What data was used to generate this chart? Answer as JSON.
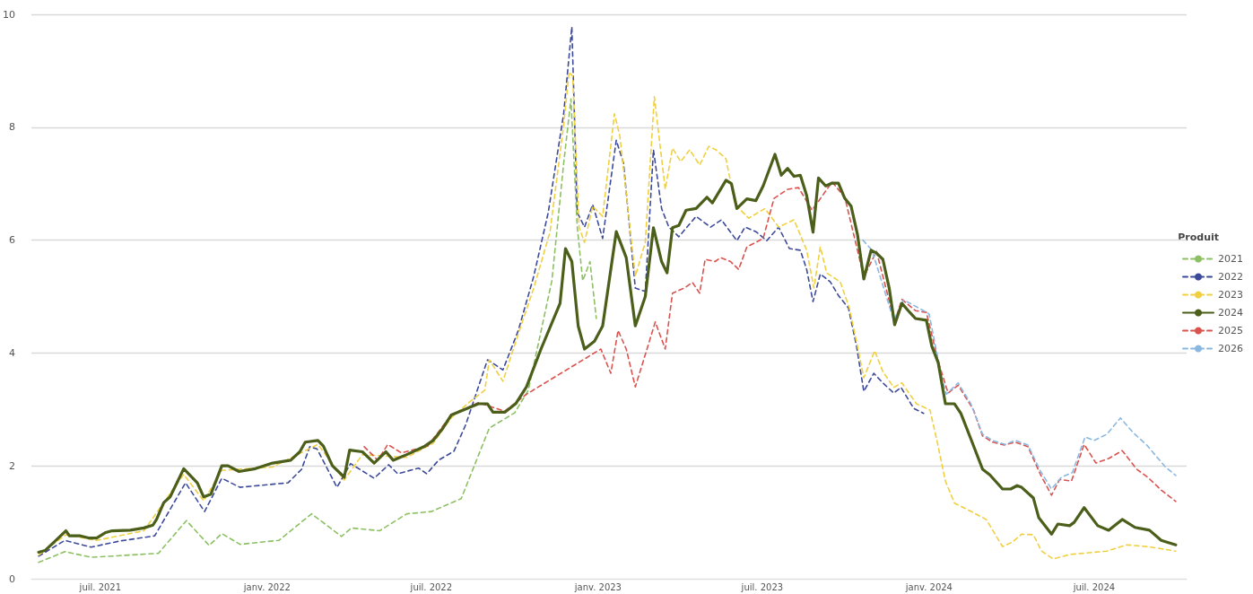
{
  "chart_data": {
    "type": "line",
    "legend_title": "Produit",
    "legend": "right",
    "grid": "y",
    "marker": "none",
    "xlim": [
      "2021-04-16",
      "2024-10-11"
    ],
    "xticks": [
      {
        "value": "2021-07-01",
        "label": "juil. 2021"
      },
      {
        "value": "2022-01-01",
        "label": "janv. 2022"
      },
      {
        "value": "2022-07-01",
        "label": "juil. 2022"
      },
      {
        "value": "2023-01-01",
        "label": "janv. 2023"
      },
      {
        "value": "2023-07-01",
        "label": "juil. 2023"
      },
      {
        "value": "2024-01-01",
        "label": "janv. 2024"
      },
      {
        "value": "2024-07-01",
        "label": "juil. 2024"
      }
    ],
    "ylim": [
      0,
      10
    ],
    "yticks": [
      0,
      2,
      4,
      6,
      8,
      10
    ],
    "series": [
      {
        "name": "2021",
        "color": "#8cc063",
        "line_style": "dashed",
        "x": [
          "2021-04-24",
          "2021-05-23",
          "2021-06-21",
          "2021-07-23",
          "2021-09-03",
          "2021-10-04",
          "2021-10-29",
          "2021-11-12",
          "2021-12-02",
          "2022-01-14",
          "2022-02-19",
          "2022-03-24",
          "2022-04-04",
          "2022-05-05",
          "2022-06-04",
          "2022-07-01",
          "2022-08-03",
          "2022-09-03",
          "2022-10-01",
          "2022-10-16",
          "2022-11-11",
          "2022-11-24",
          "2022-12-02",
          "2022-12-09",
          "2022-12-15",
          "2022-12-23",
          "2022-12-30"
        ],
        "values": [
          0.29,
          0.48,
          0.38,
          0.41,
          0.45,
          1.03,
          0.59,
          0.8,
          0.61,
          0.68,
          1.15,
          0.75,
          0.9,
          0.85,
          1.15,
          1.19,
          1.42,
          2.67,
          2.94,
          3.34,
          5.28,
          7.36,
          8.5,
          6.23,
          5.28,
          5.62,
          4.61
        ]
      },
      {
        "name": "2022",
        "color": "#3d4a9a",
        "line_style": "dashed",
        "x": [
          "2021-04-24",
          "2021-05-23",
          "2021-06-21",
          "2021-07-23",
          "2021-08-30",
          "2021-10-03",
          "2021-10-24",
          "2021-11-12",
          "2021-12-02",
          "2022-01-24",
          "2022-02-08",
          "2022-02-17",
          "2022-02-25",
          "2022-03-19",
          "2022-04-03",
          "2022-04-29",
          "2022-05-15",
          "2022-05-25",
          "2022-06-17",
          "2022-06-26",
          "2022-07-09",
          "2022-07-26",
          "2022-08-08",
          "2022-09-01",
          "2022-09-18",
          "2022-10-05",
          "2022-10-22",
          "2022-11-07",
          "2022-11-24",
          "2022-12-03",
          "2022-12-09",
          "2022-12-17",
          "2022-12-26",
          "2023-01-06",
          "2023-01-21",
          "2023-01-29",
          "2023-02-11",
          "2023-02-22",
          "2023-03-03",
          "2023-03-12",
          "2023-03-20",
          "2023-03-31",
          "2023-04-19",
          "2023-05-05",
          "2023-05-17",
          "2023-06-03",
          "2023-06-12",
          "2023-06-24",
          "2023-07-06",
          "2023-07-19",
          "2023-07-31",
          "2023-08-12",
          "2023-08-19",
          "2023-08-26",
          "2023-09-03",
          "2023-09-14",
          "2023-09-23",
          "2023-10-04",
          "2023-10-13",
          "2023-10-21",
          "2023-11-01",
          "2023-11-11",
          "2023-11-23",
          "2023-12-01",
          "2023-12-15",
          "2023-12-26"
        ],
        "values": [
          0.4,
          0.68,
          0.56,
          0.67,
          0.76,
          1.7,
          1.19,
          1.78,
          1.62,
          1.7,
          1.94,
          2.34,
          2.3,
          1.62,
          2.04,
          1.78,
          2.02,
          1.86,
          1.96,
          1.86,
          2.1,
          2.26,
          2.73,
          3.88,
          3.7,
          4.4,
          5.36,
          6.49,
          8.24,
          9.78,
          6.49,
          6.23,
          6.63,
          6.03,
          7.77,
          7.36,
          5.15,
          5.09,
          7.6,
          6.56,
          6.23,
          6.06,
          6.42,
          6.23,
          6.36,
          5.99,
          6.23,
          6.15,
          5.99,
          6.23,
          5.85,
          5.82,
          5.48,
          4.91,
          5.4,
          5.26,
          5.02,
          4.8,
          4.12,
          3.32,
          3.64,
          3.47,
          3.29,
          3.39,
          3.02,
          2.93
        ]
      },
      {
        "name": "2023",
        "color": "#f0d040",
        "line_style": "dashed",
        "x": [
          "2021-04-24",
          "2021-05-24",
          "2021-06-27",
          "2021-08-18",
          "2021-10-01",
          "2021-10-23",
          "2021-11-12",
          "2022-01-07",
          "2022-02-26",
          "2022-03-27",
          "2022-04-16",
          "2022-06-04",
          "2022-07-03",
          "2022-07-23",
          "2022-08-12",
          "2022-08-29",
          "2022-09-03",
          "2022-09-18",
          "2022-10-05",
          "2022-10-22",
          "2022-11-09",
          "2022-11-24",
          "2022-11-30",
          "2022-12-04",
          "2022-12-11",
          "2022-12-17",
          "2022-12-26",
          "2023-01-06",
          "2023-01-19",
          "2023-01-25",
          "2023-02-11",
          "2023-02-22",
          "2023-03-04",
          "2023-03-16",
          "2023-03-24",
          "2023-04-02",
          "2023-04-12",
          "2023-04-23",
          "2023-05-03",
          "2023-05-11",
          "2023-05-22",
          "2023-06-01",
          "2023-06-16",
          "2023-07-04",
          "2023-07-19",
          "2023-08-05",
          "2023-08-19",
          "2023-08-27",
          "2023-09-03",
          "2023-09-10",
          "2023-09-25",
          "2023-10-05",
          "2023-10-14",
          "2023-10-21",
          "2023-11-02",
          "2023-11-11",
          "2023-11-23",
          "2023-12-02",
          "2023-12-18",
          "2024-01-02",
          "2024-01-10",
          "2024-01-19",
          "2024-01-29",
          "2024-02-13",
          "2024-03-04",
          "2024-03-22",
          "2024-04-02",
          "2024-04-12",
          "2024-04-25",
          "2024-05-04",
          "2024-05-17",
          "2024-06-04",
          "2024-06-25",
          "2024-07-15",
          "2024-08-06",
          "2024-08-28",
          "2024-09-10",
          "2024-09-29"
        ],
        "values": [
          0.42,
          0.78,
          0.68,
          0.85,
          1.85,
          1.38,
          1.92,
          1.98,
          2.38,
          1.75,
          2.2,
          2.15,
          2.4,
          2.85,
          3.13,
          3.34,
          3.88,
          3.5,
          4.34,
          5.15,
          6.15,
          8.04,
          8.98,
          8.9,
          6.23,
          5.96,
          6.6,
          6.42,
          8.24,
          7.84,
          5.36,
          5.96,
          8.54,
          6.9,
          7.63,
          7.39,
          7.6,
          7.33,
          7.66,
          7.6,
          7.44,
          6.63,
          6.39,
          6.56,
          6.23,
          6.36,
          5.82,
          5.15,
          5.88,
          5.42,
          5.26,
          4.8,
          4.12,
          3.56,
          4.04,
          3.67,
          3.39,
          3.47,
          3.1,
          2.99,
          2.42,
          1.73,
          1.34,
          1.22,
          1.05,
          0.57,
          0.65,
          0.79,
          0.78,
          0.49,
          0.35,
          0.43,
          0.46,
          0.49,
          0.6,
          0.57,
          0.54,
          0.49
        ]
      },
      {
        "name": "2024",
        "color": "#4b5e1a",
        "line_style": "solid",
        "x": [
          "2021-04-24",
          "2021-05-01",
          "2021-05-11",
          "2021-05-24",
          "2021-05-28",
          "2021-06-09",
          "2021-06-19",
          "2021-06-27",
          "2021-07-07",
          "2021-07-14",
          "2021-08-03",
          "2021-08-18",
          "2021-08-28",
          "2021-09-01",
          "2021-09-09",
          "2021-09-16",
          "2021-10-01",
          "2021-10-16",
          "2021-10-23",
          "2021-10-31",
          "2021-11-12",
          "2021-11-19",
          "2021-12-01",
          "2021-12-19",
          "2022-01-07",
          "2022-01-27",
          "2022-02-06",
          "2022-02-12",
          "2022-02-26",
          "2022-03-04",
          "2022-03-14",
          "2022-03-27",
          "2022-04-02",
          "2022-04-16",
          "2022-04-29",
          "2022-05-12",
          "2022-05-20",
          "2022-06-04",
          "2022-06-24",
          "2022-07-03",
          "2022-07-13",
          "2022-07-23",
          "2022-08-07",
          "2022-08-22",
          "2022-09-01",
          "2022-09-07",
          "2022-09-20",
          "2022-10-02",
          "2022-10-14",
          "2022-10-30",
          "2022-11-20",
          "2022-11-26",
          "2022-12-03",
          "2022-12-10",
          "2022-12-17",
          "2022-12-28",
          "2023-01-06",
          "2023-01-21",
          "2023-02-01",
          "2023-02-11",
          "2023-02-22",
          "2023-03-03",
          "2023-03-12",
          "2023-03-18",
          "2023-03-24",
          "2023-03-31",
          "2023-04-08",
          "2023-04-19",
          "2023-05-01",
          "2023-05-07",
          "2023-05-22",
          "2023-05-28",
          "2023-06-03",
          "2023-06-14",
          "2023-06-24",
          "2023-07-02",
          "2023-07-15",
          "2023-07-22",
          "2023-07-29",
          "2023-08-05",
          "2023-08-12",
          "2023-08-19",
          "2023-08-26",
          "2023-09-01",
          "2023-09-09",
          "2023-09-16",
          "2023-09-23",
          "2023-09-30",
          "2023-10-07",
          "2023-10-14",
          "2023-10-21",
          "2023-10-29",
          "2023-11-04",
          "2023-11-11",
          "2023-11-18",
          "2023-11-24",
          "2023-12-02",
          "2023-12-09",
          "2023-12-17",
          "2023-12-29",
          "2024-01-04",
          "2024-01-11",
          "2024-01-19",
          "2024-01-29",
          "2024-02-05",
          "2024-02-16",
          "2024-02-29",
          "2024-03-08",
          "2024-03-22",
          "2024-03-31",
          "2024-04-07",
          "2024-04-12",
          "2024-04-25",
          "2024-05-01",
          "2024-05-15",
          "2024-05-22",
          "2024-06-04",
          "2024-06-09",
          "2024-06-20",
          "2024-07-05",
          "2024-07-17",
          "2024-08-01",
          "2024-08-15",
          "2024-08-31",
          "2024-09-13",
          "2024-09-29"
        ],
        "values": [
          0.47,
          0.5,
          0.65,
          0.85,
          0.76,
          0.76,
          0.72,
          0.72,
          0.82,
          0.85,
          0.86,
          0.9,
          0.95,
          1.05,
          1.35,
          1.45,
          1.95,
          1.7,
          1.45,
          1.5,
          2.0,
          2.0,
          1.9,
          1.95,
          2.05,
          2.1,
          2.25,
          2.42,
          2.45,
          2.35,
          2.0,
          1.8,
          2.28,
          2.25,
          2.05,
          2.25,
          2.1,
          2.2,
          2.35,
          2.45,
          2.65,
          2.9,
          3.0,
          3.1,
          3.1,
          2.95,
          2.95,
          3.1,
          3.4,
          4.07,
          4.88,
          5.85,
          5.62,
          4.48,
          4.07,
          4.21,
          4.48,
          6.15,
          5.69,
          4.48,
          5.0,
          6.22,
          5.62,
          5.42,
          6.22,
          6.26,
          6.53,
          6.56,
          6.76,
          6.66,
          7.06,
          7.0,
          6.56,
          6.73,
          6.7,
          6.96,
          7.52,
          7.15,
          7.27,
          7.13,
          7.15,
          6.79,
          6.14,
          7.1,
          6.96,
          7.01,
          7.01,
          6.74,
          6.6,
          6.1,
          5.31,
          5.82,
          5.77,
          5.66,
          5.15,
          4.5,
          4.88,
          4.75,
          4.61,
          4.58,
          4.12,
          3.83,
          3.1,
          3.1,
          2.93,
          2.48,
          1.94,
          1.84,
          1.59,
          1.59,
          1.65,
          1.62,
          1.43,
          1.08,
          0.79,
          0.97,
          0.94,
          1.0,
          1.26,
          0.94,
          0.86,
          1.05,
          0.91,
          0.86,
          0.68,
          0.6
        ]
      },
      {
        "name": "2025",
        "color": "#d9534f",
        "line_style": "dashed",
        "x": [
          "2022-04-18",
          "2022-05-03",
          "2022-05-14",
          "2022-05-29",
          "2022-06-27",
          "2022-07-23",
          "2022-08-22",
          "2022-09-20",
          "2022-10-14",
          "2023-01-04",
          "2023-01-15",
          "2023-01-23",
          "2023-02-01",
          "2023-02-11",
          "2023-02-22",
          "2023-03-05",
          "2023-03-16",
          "2023-03-24",
          "2023-04-06",
          "2023-04-15",
          "2023-04-23",
          "2023-04-29",
          "2023-05-10",
          "2023-05-16",
          "2023-05-27",
          "2023-06-05",
          "2023-06-14",
          "2023-06-24",
          "2023-07-02",
          "2023-07-14",
          "2023-07-29",
          "2023-08-10",
          "2023-08-25",
          "2023-09-16",
          "2023-09-30",
          "2023-10-21",
          "2023-11-04",
          "2023-11-24",
          "2023-12-02",
          "2023-12-17",
          "2023-12-29",
          "2024-01-11",
          "2024-01-22",
          "2024-02-02",
          "2024-02-19",
          "2024-02-29",
          "2024-03-11",
          "2024-03-24",
          "2024-04-05",
          "2024-04-19",
          "2024-05-03",
          "2024-05-15",
          "2024-05-24",
          "2024-06-06",
          "2024-06-20",
          "2024-07-03",
          "2024-07-17",
          "2024-08-01",
          "2024-08-17",
          "2024-08-29",
          "2024-09-13",
          "2024-09-29"
        ],
        "values": [
          2.34,
          2.1,
          2.38,
          2.23,
          2.35,
          2.9,
          3.12,
          2.97,
          3.27,
          4.07,
          3.64,
          4.4,
          4.07,
          3.4,
          3.97,
          4.55,
          4.07,
          5.06,
          5.15,
          5.25,
          5.06,
          5.66,
          5.62,
          5.69,
          5.62,
          5.48,
          5.88,
          5.96,
          6.03,
          6.74,
          6.9,
          6.93,
          6.53,
          7.03,
          6.76,
          5.35,
          5.8,
          4.55,
          4.95,
          4.75,
          4.72,
          3.85,
          3.29,
          3.43,
          2.99,
          2.53,
          2.42,
          2.37,
          2.42,
          2.34,
          1.84,
          1.48,
          1.76,
          1.73,
          2.38,
          2.05,
          2.13,
          2.27,
          1.94,
          1.8,
          1.57,
          1.37
        ]
      },
      {
        "name": "2026",
        "color": "#8ab8e0",
        "line_style": "dashed",
        "x": [
          "2023-10-20",
          "2023-10-30",
          "2023-11-23",
          "2023-12-04",
          "2023-12-26",
          "2024-01-01",
          "2024-01-15",
          "2024-01-20",
          "2024-02-02",
          "2024-02-16",
          "2024-02-29",
          "2024-03-11",
          "2024-03-25",
          "2024-04-05",
          "2024-04-19",
          "2024-05-03",
          "2024-05-15",
          "2024-05-26",
          "2024-06-07",
          "2024-06-21",
          "2024-07-01",
          "2024-07-15",
          "2024-07-30",
          "2024-08-13",
          "2024-08-28",
          "2024-09-17",
          "2024-09-29"
        ],
        "values": [
          6.0,
          5.82,
          4.58,
          4.94,
          4.75,
          4.69,
          3.56,
          3.27,
          3.47,
          3.1,
          2.56,
          2.45,
          2.38,
          2.45,
          2.37,
          1.9,
          1.59,
          1.8,
          1.88,
          2.51,
          2.45,
          2.56,
          2.85,
          2.59,
          2.37,
          1.99,
          1.83
        ]
      }
    ]
  }
}
